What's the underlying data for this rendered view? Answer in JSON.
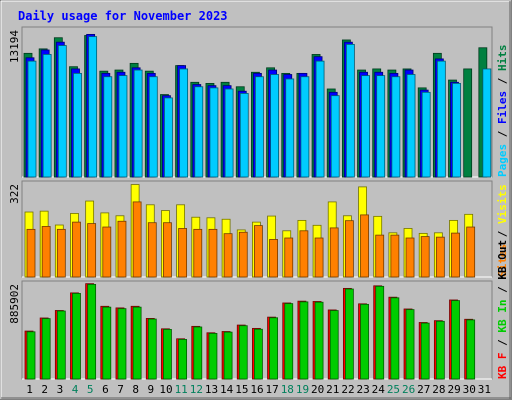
{
  "chart_data": {
    "type": "bar",
    "title": "Daily usage for November 2023",
    "categories": [
      "1",
      "2",
      "3",
      "4",
      "5",
      "6",
      "7",
      "8",
      "9",
      "10",
      "11",
      "12",
      "13",
      "14",
      "15",
      "16",
      "17",
      "18",
      "19",
      "20",
      "21",
      "22",
      "23",
      "24",
      "25",
      "26",
      "27",
      "28",
      "29",
      "30",
      "31"
    ],
    "weekend_days": [
      4,
      5,
      11,
      12,
      18,
      19,
      25,
      26
    ],
    "panels": [
      {
        "id": "hits-files-pages",
        "max_label": "13194",
        "max_value": 13194,
        "side_labels": [
          "Pages",
          "Files",
          "Hits"
        ],
        "series": [
          {
            "name": "Hits",
            "color": "#008040",
            "values": [
              11100,
              11500,
              12500,
              9900,
              12700,
              9500,
              9600,
              10200,
              9500,
              7400,
              10000,
              8500,
              8400,
              8500,
              8100,
              9400,
              9800,
              9300,
              9300,
              11000,
              7900,
              12300,
              9600,
              9700,
              9600,
              9700,
              8000,
              11100,
              8700,
              9700,
              11600
            ]
          },
          {
            "name": "Files",
            "color": "#0000ff",
            "values": [
              10700,
              11400,
              12100,
              9700,
              12800,
              9300,
              9400,
              9800,
              9300,
              7300,
              10000,
              8300,
              8200,
              8200,
              7700,
              9300,
              9600,
              9200,
              9300,
              10800,
              7600,
              12100,
              9400,
              9400,
              9300,
              9600,
              7800,
              10600,
              8500,
              0,
              0
            ]
          },
          {
            "name": "Pages",
            "color": "#00ccff",
            "values": [
              10400,
              11000,
              11800,
              9300,
              12600,
              9000,
              9100,
              9600,
              9000,
              7100,
              9700,
              8100,
              8000,
              7900,
              7500,
              9000,
              9200,
              8800,
              9000,
              10400,
              7300,
              11900,
              9100,
              9100,
              9000,
              9200,
              7600,
              10400,
              8400,
              0,
              9700
            ]
          }
        ]
      },
      {
        "id": "visits-sites",
        "max_label": "322",
        "max_value": 322,
        "side_labels": [
          "Sites",
          "Visits"
        ],
        "series": [
          {
            "name": "Visits",
            "color": "#ffff00",
            "values": [
              225,
              228,
              180,
              220,
              263,
              222,
              212,
              320,
              250,
              230,
              250,
              207,
              205,
              200,
              163,
              190,
              211,
              160,
              196,
              179,
              260,
              212,
              312,
              210,
              153,
              168,
              151,
              153,
              196,
              217,
              0
            ]
          },
          {
            "name": "Sites",
            "color": "#ff8000",
            "values": [
              165,
              175,
              165,
              190,
              185,
              173,
              193,
              260,
              188,
              188,
              168,
              165,
              165,
              150,
              155,
              178,
              130,
              135,
              160,
              135,
              170,
              195,
              215,
              145,
              145,
              135,
              140,
              138,
              152,
              173,
              0
            ]
          }
        ]
      },
      {
        "id": "kbf-kbin-kbout",
        "max_label": "885902",
        "max_value": 885902,
        "side_labels": [
          "KB F",
          "KB In",
          "KB Out"
        ],
        "series": [
          {
            "name": "KB F",
            "color": "#ff0000",
            "values": [
              447000,
              569000,
              639000,
              803000,
              889000,
              678000,
              663000,
              678000,
              565000,
              468000,
              375000,
              491000,
              431000,
              443000,
              503000,
              472000,
              577000,
              709000,
              726000,
              723000,
              644000,
              845000,
              701000,
              869000,
              763000,
              653000,
              527000,
              544000,
              737000,
              557000,
              0
            ]
          },
          {
            "name": "KB In",
            "color": "#00cc00",
            "values": [
              440000,
              563000,
              634000,
              798000,
              882000,
              670000,
              656000,
              670000,
              559000,
              462000,
              369000,
              485000,
              425000,
              437000,
              497000,
              464000,
              571000,
              703000,
              719000,
              716000,
              638000,
              839000,
              696000,
              864000,
              757000,
              647000,
              521000,
              538000,
              731000,
              551000,
              0
            ]
          }
        ]
      }
    ]
  },
  "colors": {
    "background": "#c0c0c0",
    "title": "#0000ff",
    "weekday_label": "#000000",
    "weekend_label": "#00805c"
  }
}
